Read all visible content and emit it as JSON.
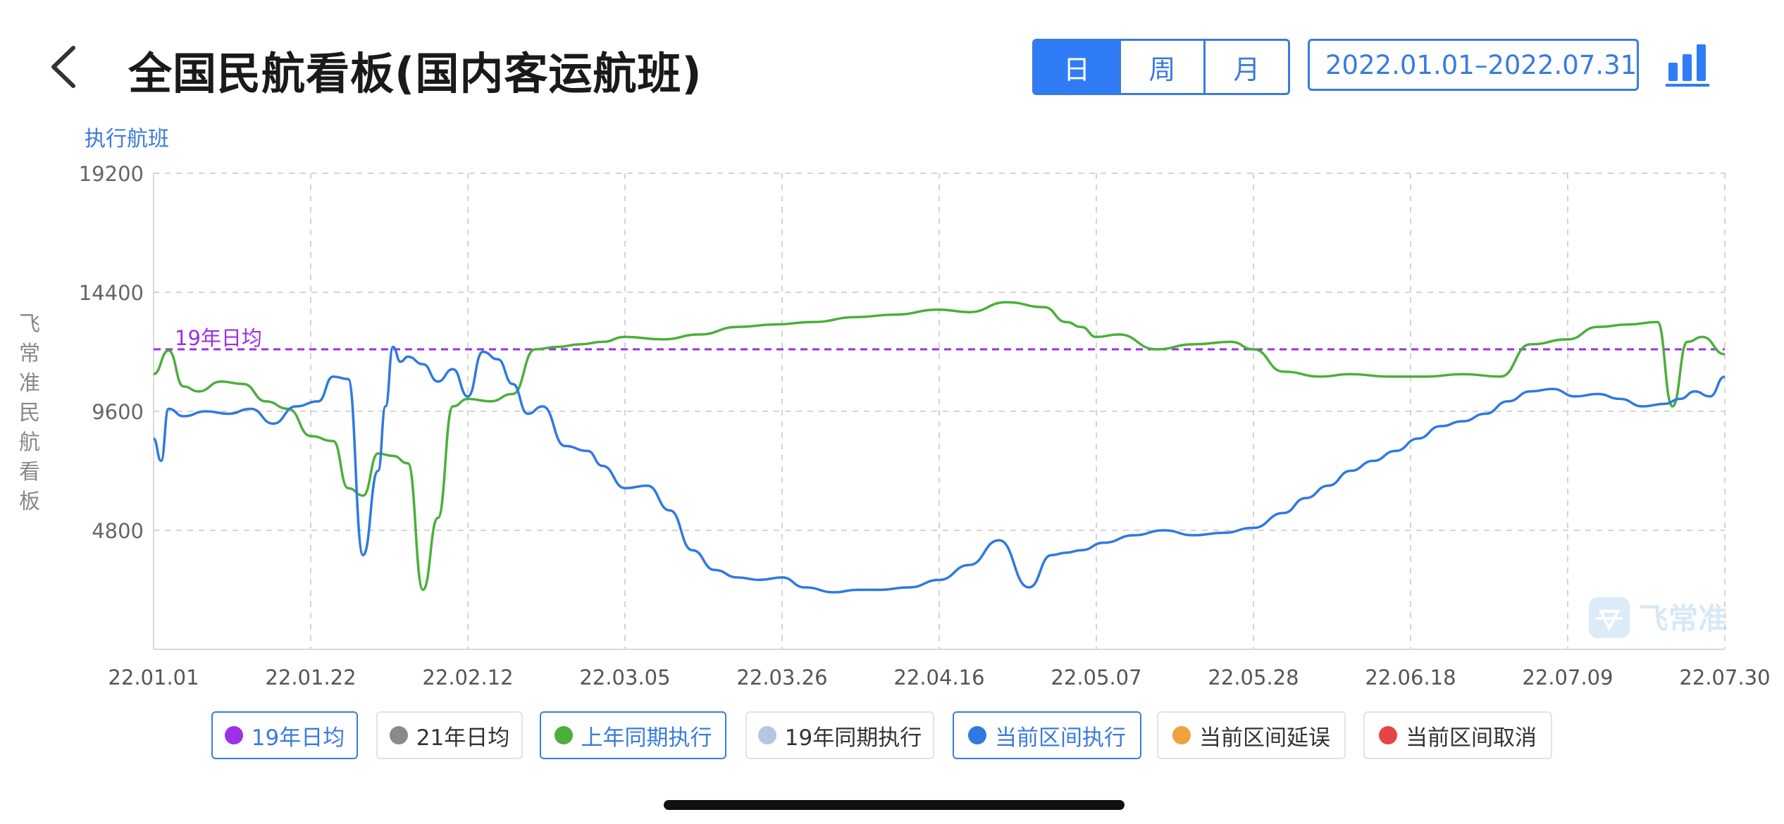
{
  "header": {
    "title": "全国民航看板(国内客运航班)",
    "tabs": [
      {
        "label": "日",
        "active": true
      },
      {
        "label": "周",
        "active": false
      },
      {
        "label": "月",
        "active": false
      }
    ],
    "date_range": "2022.01.01–2022.07.31",
    "back_icon": "chevron-left-icon",
    "chart_icon": "bar-chart-icon"
  },
  "side_label": "飞常准民航看板",
  "watermark": "飞常准",
  "colors": {
    "accent": "#2f7cf6",
    "avg19": "#9b30e6",
    "avg21": "#8a8a8a",
    "lastyear": "#4caf3a",
    "same19": "#b3c8e0",
    "current": "#2e7ae0",
    "delay": "#f0a03c",
    "cancel": "#e64545"
  },
  "legend": [
    {
      "label": "19年日均",
      "color": "#9b30e6",
      "active": true
    },
    {
      "label": "21年日均",
      "color": "#8a8a8a",
      "active": false
    },
    {
      "label": "上年同期执行",
      "color": "#4caf3a",
      "active": true
    },
    {
      "label": "19年同期执行",
      "color": "#b3c8e0",
      "active": false
    },
    {
      "label": "当前区间执行",
      "color": "#2e7ae0",
      "active": true
    },
    {
      "label": "当前区间延误",
      "color": "#f0a03c",
      "active": false
    },
    {
      "label": "当前区间取消",
      "color": "#e64545",
      "active": false
    }
  ],
  "chart_data": {
    "type": "line",
    "ylabel": "执行航班",
    "ylim": [
      0,
      19200
    ],
    "yticks": [
      4800,
      9600,
      14400,
      19200
    ],
    "ytick_labels": [
      "4800",
      "9600",
      "14400",
      "19200"
    ],
    "x_range": [
      "2022-01-01",
      "2022-07-30"
    ],
    "x_ticks": [
      "22.01.01",
      "22.01.22",
      "22.02.12",
      "22.03.05",
      "22.03.26",
      "22.04.16",
      "22.05.07",
      "22.05.28",
      "22.06.18",
      "22.07.09",
      "22.07.30"
    ],
    "reference_line": {
      "label": "19年日均",
      "value": 12100
    },
    "grid": true,
    "series": [
      {
        "name": "上年同期执行",
        "x": [
          "2022-01-01",
          "2022-01-03",
          "2022-01-05",
          "2022-01-07",
          "2022-01-10",
          "2022-01-13",
          "2022-01-16",
          "2022-01-19",
          "2022-01-22",
          "2022-01-25",
          "2022-01-27",
          "2022-01-29",
          "2022-01-31",
          "2022-02-02",
          "2022-02-04",
          "2022-02-06",
          "2022-02-08",
          "2022-02-10",
          "2022-02-12",
          "2022-02-15",
          "2022-02-18",
          "2022-02-21",
          "2022-02-24",
          "2022-02-27",
          "2022-03-02",
          "2022-03-05",
          "2022-03-10",
          "2022-03-15",
          "2022-03-20",
          "2022-03-25",
          "2022-03-30",
          "2022-04-05",
          "2022-04-10",
          "2022-04-16",
          "2022-04-20",
          "2022-04-25",
          "2022-04-30",
          "2022-05-03",
          "2022-05-05",
          "2022-05-07",
          "2022-05-10",
          "2022-05-15",
          "2022-05-20",
          "2022-05-25",
          "2022-05-28",
          "2022-06-01",
          "2022-06-06",
          "2022-06-10",
          "2022-06-15",
          "2022-06-20",
          "2022-06-25",
          "2022-06-30",
          "2022-07-04",
          "2022-07-09",
          "2022-07-13",
          "2022-07-17",
          "2022-07-21",
          "2022-07-23",
          "2022-07-25",
          "2022-07-27",
          "2022-07-30"
        ],
        "values": [
          11100,
          12050,
          10600,
          10400,
          10800,
          10700,
          10000,
          9700,
          8600,
          8400,
          6500,
          6200,
          7900,
          7800,
          7500,
          2400,
          5300,
          9800,
          10100,
          10000,
          10300,
          12100,
          12200,
          12300,
          12400,
          12600,
          12500,
          12700,
          13000,
          13100,
          13200,
          13400,
          13500,
          13700,
          13600,
          14000,
          13800,
          13200,
          13000,
          12600,
          12700,
          12100,
          12300,
          12400,
          12100,
          11200,
          11000,
          11100,
          11000,
          11000,
          11100,
          11000,
          12300,
          12500,
          13000,
          13100,
          13200,
          9800,
          12400,
          12600,
          11900
        ]
      },
      {
        "name": "当前区间执行",
        "x": [
          "2022-01-01",
          "2022-01-02",
          "2022-01-03",
          "2022-01-05",
          "2022-01-08",
          "2022-01-11",
          "2022-01-14",
          "2022-01-17",
          "2022-01-20",
          "2022-01-23",
          "2022-01-25",
          "2022-01-27",
          "2022-01-29",
          "2022-01-31",
          "2022-02-01",
          "2022-02-02",
          "2022-02-03",
          "2022-02-04",
          "2022-02-06",
          "2022-02-08",
          "2022-02-10",
          "2022-02-12",
          "2022-02-14",
          "2022-02-16",
          "2022-02-18",
          "2022-02-20",
          "2022-02-22",
          "2022-02-25",
          "2022-02-28",
          "2022-03-02",
          "2022-03-05",
          "2022-03-08",
          "2022-03-11",
          "2022-03-14",
          "2022-03-17",
          "2022-03-20",
          "2022-03-23",
          "2022-03-26",
          "2022-03-29",
          "2022-04-02",
          "2022-04-05",
          "2022-04-08",
          "2022-04-12",
          "2022-04-16",
          "2022-04-20",
          "2022-04-24",
          "2022-04-28",
          "2022-05-01",
          "2022-05-03",
          "2022-05-05",
          "2022-05-08",
          "2022-05-12",
          "2022-05-16",
          "2022-05-20",
          "2022-05-24",
          "2022-05-28",
          "2022-06-01",
          "2022-06-04",
          "2022-06-07",
          "2022-06-10",
          "2022-06-13",
          "2022-06-16",
          "2022-06-19",
          "2022-06-22",
          "2022-06-25",
          "2022-06-28",
          "2022-07-01",
          "2022-07-04",
          "2022-07-07",
          "2022-07-10",
          "2022-07-13",
          "2022-07-16",
          "2022-07-19",
          "2022-07-22",
          "2022-07-24",
          "2022-07-26",
          "2022-07-28",
          "2022-07-30"
        ],
        "values": [
          8500,
          7600,
          9700,
          9400,
          9600,
          9500,
          9700,
          9100,
          9800,
          10000,
          11000,
          10900,
          3800,
          7200,
          9800,
          12200,
          11600,
          11800,
          11500,
          10800,
          11300,
          10200,
          12000,
          11700,
          10700,
          9500,
          9800,
          8200,
          8000,
          7400,
          6500,
          6600,
          5600,
          4000,
          3200,
          2900,
          2800,
          2900,
          2500,
          2300,
          2400,
          2400,
          2500,
          2800,
          3400,
          4400,
          2500,
          3800,
          3900,
          4000,
          4300,
          4600,
          4800,
          4600,
          4700,
          4900,
          5500,
          6100,
          6600,
          7200,
          7600,
          8000,
          8500,
          9000,
          9200,
          9500,
          10000,
          10400,
          10500,
          10200,
          10300,
          10100,
          9800,
          9900,
          10100,
          10400,
          10200,
          11000
        ]
      }
    ]
  }
}
